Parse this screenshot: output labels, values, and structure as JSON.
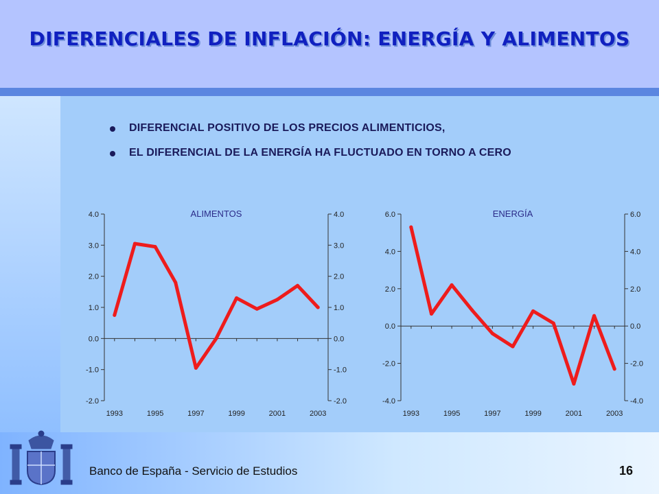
{
  "slide": {
    "title": "DIFERENCIALES DE INFLACIÓN: ENERGÍA Y ALIMENTOS",
    "bullets": [
      "DIFERENCIAL POSITIVO DE LOS PRECIOS ALIMENTICIOS,",
      "EL DIFERENCIAL DE LA ENERGÍA HA FLUCTUADO EN TORNO A CERO"
    ],
    "footer": "Banco de España - Servicio de Estudios",
    "page_number": "16",
    "colors": {
      "series": "#ee1c1c",
      "title": "#1020c0",
      "header": "#b4c4ff"
    }
  },
  "chart_data": [
    {
      "type": "line",
      "title": "ALIMENTOS",
      "x": [
        1993,
        1994,
        1995,
        1996,
        1997,
        1998,
        1999,
        2000,
        2001,
        2002,
        2003
      ],
      "xticks": [
        "1993",
        "1995",
        "1997",
        "1999",
        "2001",
        "2003"
      ],
      "yticks": [
        "4.0",
        "3.0",
        "2.0",
        "1.0",
        "0.0",
        "-1.0",
        "-2.0"
      ],
      "ylim": [
        -2,
        4
      ],
      "dual_y_axis": true,
      "series": [
        {
          "values": [
            0.75,
            3.05,
            2.95,
            1.8,
            -0.95,
            0.0,
            1.3,
            0.95,
            1.25,
            1.7,
            1.0
          ]
        }
      ]
    },
    {
      "type": "line",
      "title": "ENERGÍA",
      "x": [
        1993,
        1994,
        1995,
        1996,
        1997,
        1998,
        1999,
        2000,
        2001,
        2002,
        2003
      ],
      "xticks": [
        "1993",
        "1995",
        "1997",
        "1999",
        "2001",
        "2003"
      ],
      "yticks": [
        "6.0",
        "4.0",
        "2.0",
        "0.0",
        "-2.0",
        "-4.0"
      ],
      "ylim": [
        -4,
        6
      ],
      "dual_y_axis": true,
      "series": [
        {
          "values": [
            5.3,
            0.65,
            2.2,
            0.85,
            -0.4,
            -1.1,
            0.8,
            0.15,
            -3.1,
            0.55,
            -2.3
          ]
        }
      ]
    }
  ]
}
